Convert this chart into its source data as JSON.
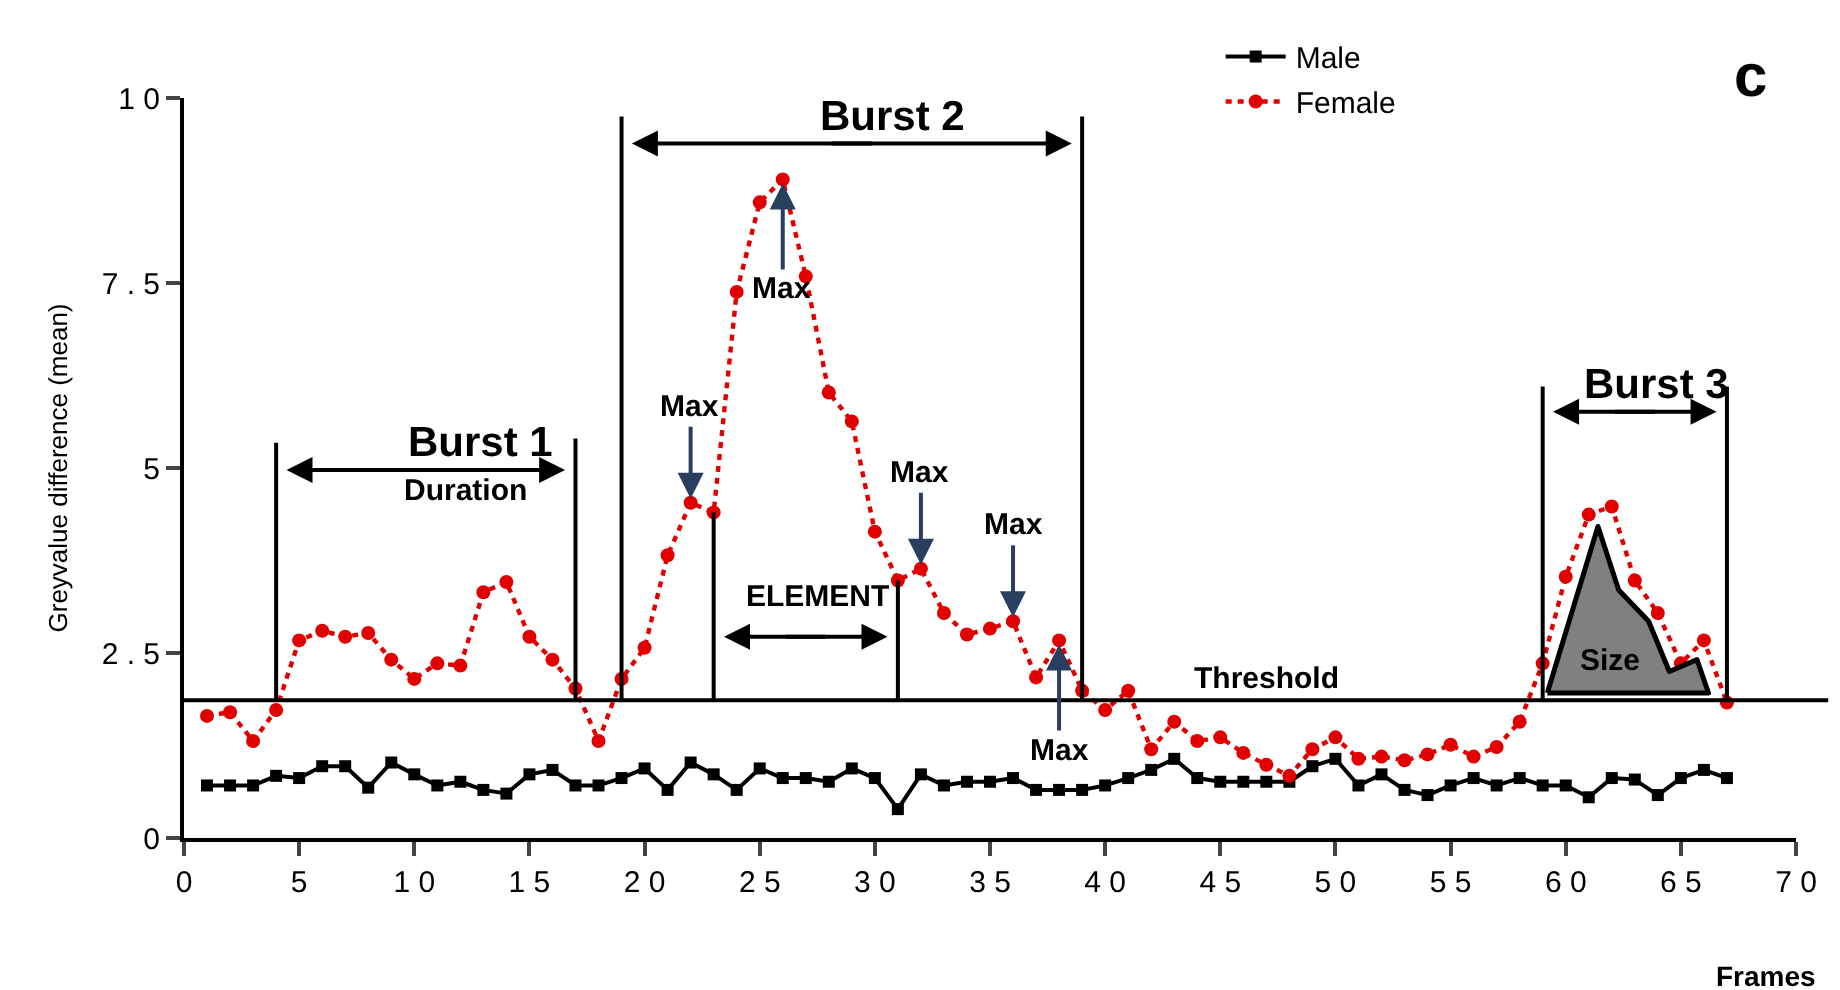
{
  "chart_data": {
    "type": "line",
    "xlabel": "Frames",
    "ylabel": "Greyvalue difference (mean)",
    "xlim": [
      0,
      70
    ],
    "ylim": [
      0,
      10
    ],
    "xticks": [
      0,
      5,
      {
        "value": 10,
        "label": "1 0"
      },
      {
        "value": 15,
        "label": "1 5"
      },
      {
        "value": 20,
        "label": "2 0"
      },
      {
        "value": 25,
        "label": "2 5"
      },
      {
        "value": 30,
        "label": "3 0"
      },
      {
        "value": 35,
        "label": "3 5"
      },
      {
        "value": 40,
        "label": "4 0"
      },
      {
        "value": 45,
        "label": "4 5"
      },
      {
        "value": 50,
        "label": "5 0"
      },
      {
        "value": 55,
        "label": "5 5"
      },
      {
        "value": 60,
        "label": "6 0"
      },
      {
        "value": 65,
        "label": "6 5"
      },
      {
        "value": 70,
        "label": "7 0"
      }
    ],
    "yticks": [
      0,
      {
        "value": 2.5,
        "label": "2 . 5"
      },
      5,
      {
        "value": 7.5,
        "label": "7 . 5"
      },
      {
        "value": 10,
        "label": "1 0"
      }
    ],
    "legend": "top right",
    "x": [
      1,
      2,
      3,
      4,
      5,
      6,
      7,
      8,
      9,
      10,
      11,
      12,
      13,
      14,
      15,
      16,
      17,
      18,
      19,
      20,
      21,
      22,
      23,
      24,
      25,
      26,
      27,
      28,
      29,
      30,
      31,
      32,
      33,
      34,
      35,
      36,
      37,
      38,
      39,
      40,
      41,
      42,
      43,
      44,
      45,
      46,
      47,
      48,
      49,
      50,
      51,
      52,
      53,
      54,
      55,
      56,
      57,
      58,
      59,
      60,
      61,
      62,
      63,
      64,
      65,
      66,
      67
    ],
    "series": [
      {
        "name": "Male",
        "color": "#000000",
        "marker": "square",
        "line_style": "solid",
        "values": [
          0.71,
          0.71,
          0.71,
          0.84,
          0.81,
          0.97,
          0.97,
          0.68,
          1.02,
          0.86,
          0.71,
          0.76,
          0.65,
          0.6,
          0.86,
          0.92,
          0.71,
          0.71,
          0.81,
          0.94,
          0.65,
          1.02,
          0.86,
          0.65,
          0.94,
          0.81,
          0.81,
          0.76,
          0.94,
          0.81,
          0.39,
          0.86,
          0.71,
          0.76,
          0.76,
          0.81,
          0.65,
          0.65,
          0.65,
          0.71,
          0.81,
          0.92,
          1.07,
          0.81,
          0.76,
          0.76,
          0.76,
          0.76,
          0.97,
          1.07,
          0.71,
          0.86,
          0.65,
          0.58,
          0.71,
          0.81,
          0.71,
          0.81,
          0.71,
          0.71,
          0.55,
          0.81,
          0.79,
          0.58,
          0.81,
          0.92,
          0.81
        ]
      },
      {
        "name": "Female",
        "color": "#e00000",
        "marker": "circle",
        "line_style": "dotted",
        "values": [
          1.65,
          1.7,
          1.31,
          1.73,
          2.67,
          2.8,
          2.72,
          2.77,
          2.41,
          2.15,
          2.36,
          2.33,
          3.32,
          3.46,
          2.72,
          2.41,
          2.02,
          1.31,
          2.15,
          2.57,
          3.82,
          4.53,
          4.4,
          7.38,
          8.59,
          8.9,
          7.59,
          6.02,
          5.63,
          4.14,
          3.48,
          3.64,
          3.04,
          2.75,
          2.83,
          2.93,
          2.17,
          2.67,
          1.99,
          1.73,
          1.99,
          1.2,
          1.57,
          1.31,
          1.36,
          1.15,
          0.99,
          0.84,
          1.2,
          1.36,
          1.07,
          1.1,
          1.05,
          1.13,
          1.26,
          1.1,
          1.23,
          1.57,
          2.36,
          3.53,
          4.37,
          4.48,
          3.48,
          3.04,
          2.36,
          2.67,
          1.83
        ]
      },
      {
        "type": "line",
        "color": "#000000",
        "marker": "none",
        "line_style": "solid",
        "x": [
          4,
          4,
          null,
          17,
          17,
          null,
          19,
          19,
          null,
          39,
          39,
          null,
          23,
          23,
          null,
          31,
          31,
          null,
          59,
          59,
          null,
          67,
          67
        ],
        "values": [
          1.86,
          5.34,
          null,
          1.86,
          5.4,
          null,
          1.86,
          9.75,
          null,
          1.86,
          9.75,
          null,
          1.86,
          4.4,
          null,
          1.86,
          3.48,
          null,
          1.86,
          6.1,
          null,
          1.86,
          6.1
        ]
      },
      {
        "type": "area",
        "color": "#808080",
        "marker": "none",
        "line_style": "solid",
        "x": [
          59.2,
          61.4,
          62.3,
          63.6,
          64.5,
          65.7,
          66.2,
          59.2
        ],
        "values": [
          1.96,
          4.21,
          3.35,
          2.93,
          2.25,
          2.41,
          1.96,
          1.96
        ]
      }
    ],
    "ref_lines": [
      {
        "axis": "y",
        "value": 1.86,
        "label": "Threshold",
        "color": "#000000"
      }
    ],
    "annotations": [
      "c",
      "Burst 1",
      "Duration",
      "Burst 2",
      "ELEMENT",
      {
        "text": "Max",
        "x": 22,
        "y": 4.53
      },
      {
        "text": "Max",
        "x": 26,
        "y": 8.9
      },
      {
        "text": "Max",
        "x": 32,
        "y": 3.64
      },
      {
        "text": "Max",
        "x": 36,
        "y": 2.93
      },
      {
        "text": "Max",
        "x": 38,
        "y": 2.67
      },
      "Burst 3",
      "Size"
    ]
  }
}
